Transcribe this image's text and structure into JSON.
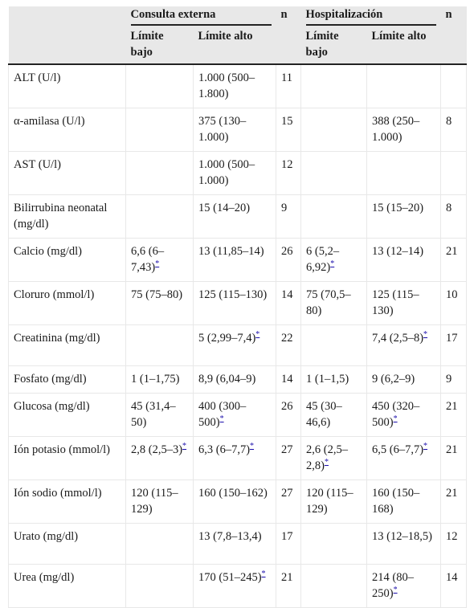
{
  "header": {
    "group1": "Consulta externa",
    "group2": "Hospitalización",
    "n": "n",
    "low": "Límite bajo",
    "high": "Límite alto"
  },
  "rows": [
    {
      "name": "ALT (U/l)",
      "ce_low": "",
      "ce_high": "1.000 (500–1.800)",
      "ce_n": "11",
      "h_low": "",
      "h_high": "",
      "h_n": ""
    },
    {
      "name": "α-amilasa (U/l)",
      "ce_low": "",
      "ce_high": "375 (130–1.000)",
      "ce_n": "15",
      "h_low": "",
      "h_high": "388 (250–1.000)",
      "h_n": "8"
    },
    {
      "name": "AST (U/l)",
      "ce_low": "",
      "ce_high": "1.000 (500–1.000)",
      "ce_n": "12",
      "h_low": "",
      "h_high": "",
      "h_n": ""
    },
    {
      "name": "Bilirrubina neonatal (mg/dl)",
      "ce_low": "",
      "ce_high": "15 (14–20)",
      "ce_n": "9",
      "h_low": "",
      "h_high": "15 (15–20)",
      "h_n": "8"
    },
    {
      "name": "Calcio (mg/dl)",
      "ce_low": "6,6 (6–7,43)",
      "ce_low_ref": "*",
      "ce_high": "13 (11,85–14)",
      "ce_n": "26",
      "h_low": "6 (5,2–6,92)",
      "h_low_ref": "*",
      "h_high": "13 (12–14)",
      "h_n": "21"
    },
    {
      "name": "Cloruro (mmol/l)",
      "ce_low": "75 (75–80)",
      "ce_high": "125 (115–130)",
      "ce_n": "14",
      "h_low": "75 (70,5–80)",
      "h_high": "125 (115–130)",
      "h_n": "10"
    },
    {
      "name": "Creatinina (mg/dl)",
      "ce_low": "",
      "ce_high": "5 (2,99–7,4)",
      "ce_high_ref": "*",
      "ce_n": "22",
      "h_low": "",
      "h_high": "7,4 (2,5–8)",
      "h_high_ref": "*",
      "h_n": "17"
    },
    {
      "name": "Fosfato (mg/dl)",
      "ce_low": "1 (1–1,75)",
      "ce_high": "8,9 (6,04–9)",
      "ce_n": "14",
      "h_low": "1 (1–1,5)",
      "h_high": "9 (6,2–9)",
      "h_n": "9"
    },
    {
      "name": "Glucosa (mg/dl)",
      "ce_low": "45 (31,4–50)",
      "ce_high": "400 (300–500)",
      "ce_high_ref": "*",
      "ce_n": "26",
      "h_low": "45 (30–46,6)",
      "h_high": "450 (320–500)",
      "h_high_ref": "*",
      "h_n": "21"
    },
    {
      "name": "Ión potasio (mmol/l)",
      "ce_low": "2,8 (2,5–3)",
      "ce_low_ref": "*",
      "ce_high": "6,3 (6–7,7)",
      "ce_high_ref": "*",
      "ce_n": "27",
      "h_low": "2,6 (2,5–2,8)",
      "h_low_ref": "*",
      "h_high": "6,5 (6–7,7)",
      "h_high_ref": "*",
      "h_n": "21"
    },
    {
      "name": "Ión sodio (mmol/l)",
      "ce_low": "120 (115–129)",
      "ce_high": "160 (150–162)",
      "ce_n": "27",
      "h_low": "120 (115–129)",
      "h_high": "160 (150–168)",
      "h_n": "21"
    },
    {
      "name": "Urato (mg/dl)",
      "ce_low": "",
      "ce_high": "13 (7,8–13,4)",
      "ce_n": "17",
      "h_low": "",
      "h_high": "13 (12–18,5)",
      "h_n": "12"
    },
    {
      "name": "Urea (mg/dl)",
      "ce_low": "",
      "ce_high": "170 (51–245)",
      "ce_high_ref": "*",
      "ce_n": "21",
      "h_low": "",
      "h_high": "214 (80–250)",
      "h_high_ref": "*",
      "h_n": "14"
    }
  ]
}
